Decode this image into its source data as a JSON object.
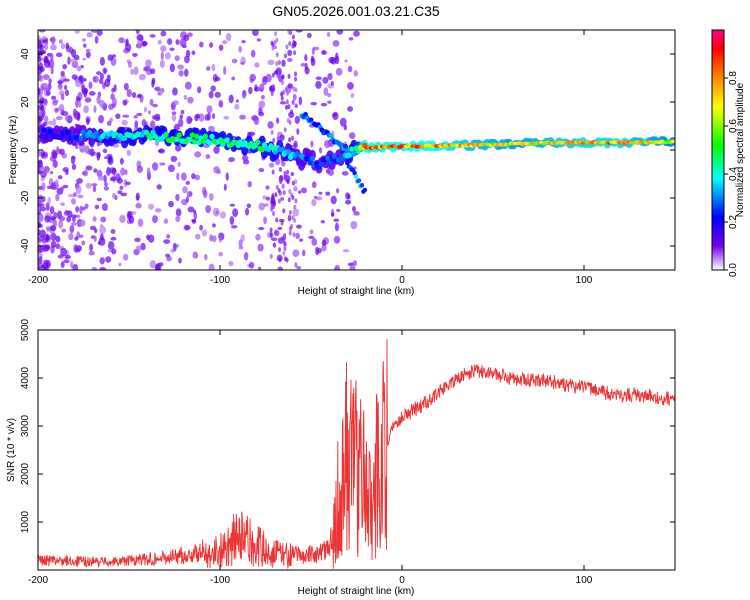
{
  "title": "GN05.2026.001.03.21.C35",
  "chart_data": [
    {
      "type": "heatmap",
      "xlabel": "Height of straight line (km)",
      "ylabel": "Frequency (Hz)",
      "xlim": [
        -200,
        150
      ],
      "ylim": [
        -50,
        50
      ],
      "x_ticks": [
        -200,
        -100,
        0,
        100
      ],
      "y_ticks": [
        -40,
        -20,
        0,
        20,
        40
      ],
      "colorbar": {
        "label": "Normalized spectral amplitude",
        "range": [
          0,
          1
        ],
        "ticks": [
          0.0,
          0.2,
          0.4,
          0.6,
          0.8
        ]
      },
      "ridge": {
        "x": [
          -200,
          -180,
          -160,
          -140,
          -120,
          -100,
          -80,
          -60,
          -45,
          -35,
          -25,
          -20,
          0,
          20,
          40,
          60,
          80,
          100,
          120,
          150
        ],
        "freq": [
          7,
          6,
          6,
          6,
          5,
          4,
          2,
          -2,
          -6,
          -3,
          0,
          1,
          1.5,
          1.8,
          2,
          2.5,
          3,
          3,
          3,
          3.5
        ],
        "amplitude": [
          0.2,
          0.25,
          0.4,
          0.45,
          0.5,
          0.5,
          0.5,
          0.35,
          0.25,
          0.3,
          0.45,
          0.9,
          0.85,
          0.85,
          0.75,
          0.7,
          0.75,
          0.8,
          0.8,
          0.65
        ]
      }
    },
    {
      "type": "line",
      "xlabel": "Height of straight line (km)",
      "ylabel": "SNR (10 * v/v)",
      "xlim": [
        -200,
        150
      ],
      "ylim": [
        0,
        5000
      ],
      "x_ticks": [
        -200,
        -100,
        0,
        100
      ],
      "y_ticks": [
        1000,
        2000,
        3000,
        4000,
        5000
      ],
      "color": "#ee3333",
      "series": [
        {
          "name": "SNR",
          "x": [
            -200,
            -180,
            -160,
            -140,
            -120,
            -100,
            -90,
            -80,
            -70,
            -60,
            -50,
            -40,
            -35,
            -30,
            -25,
            -20,
            -15,
            -10,
            -5,
            0,
            10,
            20,
            30,
            40,
            50,
            60,
            70,
            80,
            90,
            100,
            107,
            110,
            120,
            130,
            140,
            150
          ],
          "values": [
            200,
            180,
            170,
            220,
            300,
            400,
            700,
            500,
            350,
            300,
            320,
            400,
            1500,
            2500,
            2200,
            2000,
            1800,
            2500,
            3000,
            3200,
            3400,
            3700,
            4000,
            4150,
            4100,
            4000,
            3950,
            3950,
            3850,
            3800,
            3750,
            3700,
            3650,
            3650,
            3600,
            3550
          ]
        }
      ]
    }
  ]
}
